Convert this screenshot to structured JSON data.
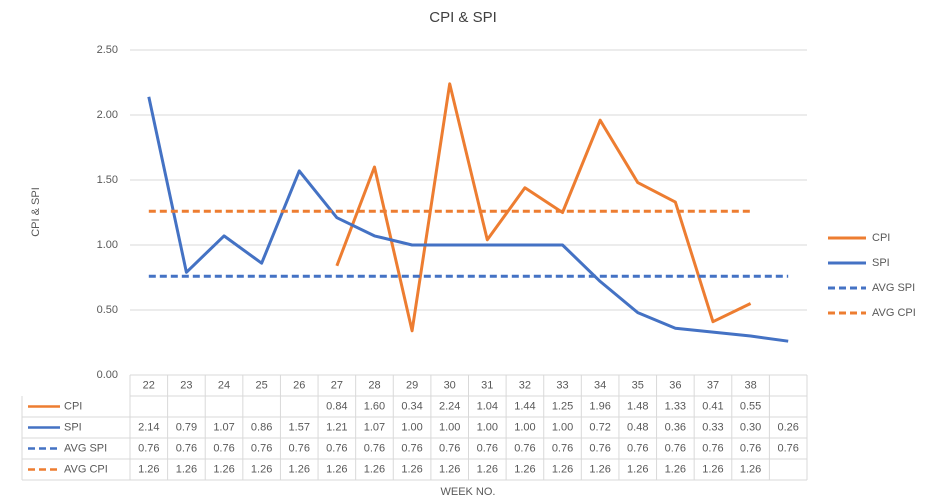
{
  "chart_data": {
    "type": "line",
    "title": "CPI & SPI",
    "y_label": "CPI & SPI",
    "x_label": "WEEK NO.",
    "categories": [
      "22",
      "23",
      "24",
      "25",
      "26",
      "27",
      "28",
      "29",
      "30",
      "31",
      "32",
      "33",
      "34",
      "35",
      "36",
      "37",
      "38",
      null
    ],
    "ylim": [
      0,
      2.5
    ],
    "yticks": [
      {
        "value": 0,
        "label": "0.00"
      },
      {
        "value": 0.5,
        "label": "0.50"
      },
      {
        "value": 1,
        "label": "1.00"
      },
      {
        "value": 1.5,
        "label": "1.50"
      },
      {
        "value": 2,
        "label": "2.00"
      },
      {
        "value": 2.5,
        "label": "2.50"
      }
    ],
    "grid": true,
    "legend": "right",
    "data_table": true,
    "series": [
      {
        "name": "CPI",
        "color": "#ed7d31",
        "dashed": false,
        "values": [
          null,
          null,
          null,
          null,
          null,
          0.84,
          1.6,
          0.34,
          2.24,
          1.04,
          1.44,
          1.25,
          1.96,
          1.48,
          1.33,
          0.41,
          0.55,
          null
        ],
        "value_labels": [
          null,
          null,
          null,
          null,
          null,
          "0.84",
          "1.60",
          "0.34",
          "2.24",
          "1.04",
          "1.44",
          "1.25",
          "1.96",
          "1.48",
          "1.33",
          "0.41",
          "0.55",
          null
        ]
      },
      {
        "name": "SPI",
        "color": "#4472c4",
        "dashed": false,
        "values": [
          2.14,
          0.79,
          1.07,
          0.86,
          1.57,
          1.21,
          1.07,
          1,
          1,
          1,
          1,
          1,
          0.72,
          0.48,
          0.36,
          0.33,
          0.3,
          0.26
        ],
        "value_labels": [
          "2.14",
          "0.79",
          "1.07",
          "0.86",
          "1.57",
          "1.21",
          "1.07",
          "1.00",
          "1.00",
          "1.00",
          "1.00",
          "1.00",
          "0.72",
          "0.48",
          "0.36",
          "0.33",
          "0.30",
          "0.26"
        ]
      },
      {
        "name": "AVG SPI",
        "color": "#4472c4",
        "dashed": true,
        "values": [
          0.76,
          0.76,
          0.76,
          0.76,
          0.76,
          0.76,
          0.76,
          0.76,
          0.76,
          0.76,
          0.76,
          0.76,
          0.76,
          0.76,
          0.76,
          0.76,
          0.76,
          0.76
        ],
        "value_labels": [
          "0.76",
          "0.76",
          "0.76",
          "0.76",
          "0.76",
          "0.76",
          "0.76",
          "0.76",
          "0.76",
          "0.76",
          "0.76",
          "0.76",
          "0.76",
          "0.76",
          "0.76",
          "0.76",
          "0.76",
          "0.76"
        ]
      },
      {
        "name": "AVG CPI",
        "color": "#ed7d31",
        "dashed": true,
        "values": [
          1.26,
          1.26,
          1.26,
          1.26,
          1.26,
          1.26,
          1.26,
          1.26,
          1.26,
          1.26,
          1.26,
          1.26,
          1.26,
          1.26,
          1.26,
          1.26,
          1.26,
          null
        ],
        "value_labels": [
          "1.26",
          "1.26",
          "1.26",
          "1.26",
          "1.26",
          "1.26",
          "1.26",
          "1.26",
          "1.26",
          "1.26",
          "1.26",
          "1.26",
          "1.26",
          "1.26",
          "1.26",
          "1.26",
          "1.26",
          null
        ]
      }
    ]
  }
}
